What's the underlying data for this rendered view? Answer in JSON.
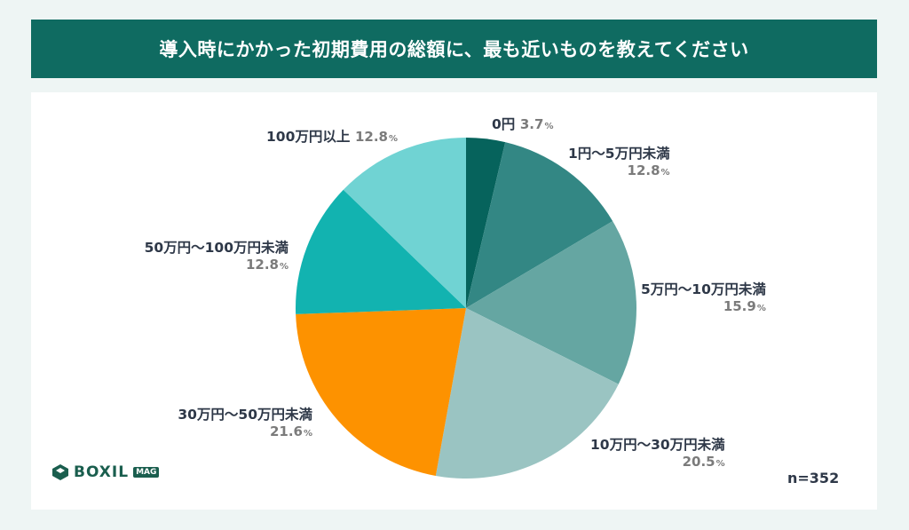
{
  "title": "導入時にかかった初期費用の総額に、最も近いものを教えてください",
  "sample_size": "n=352",
  "logo": {
    "text": "BOXIL",
    "badge": "MAG",
    "icon": "boxil-logo-icon"
  },
  "chart_data": {
    "type": "pie",
    "title": "導入時にかかった初期費用の総額に、最も近いものを教えてください",
    "unit": "%",
    "slices": [
      {
        "label": "0円",
        "value": 3.7,
        "display": "3.7",
        "color": "#06635c"
      },
      {
        "label": "1円〜5万円未満",
        "value": 12.8,
        "display": "12.8",
        "color": "#338784"
      },
      {
        "label": "5万円〜10万円未満",
        "value": 15.9,
        "display": "15.9",
        "color": "#65a6a2"
      },
      {
        "label": "10万円〜30万円未満",
        "value": 20.5,
        "display": "20.5",
        "color": "#9ac4c2"
      },
      {
        "label": "30万円〜50万円未満",
        "value": 21.6,
        "display": "21.6",
        "color": "#fd9200"
      },
      {
        "label": "50万円〜100万円未満",
        "value": 12.8,
        "display": "12.8",
        "color": "#12b3b0"
      },
      {
        "label": "100万円以上",
        "value": 12.8,
        "display": "12.8",
        "color": "#70d3d3"
      }
    ]
  }
}
